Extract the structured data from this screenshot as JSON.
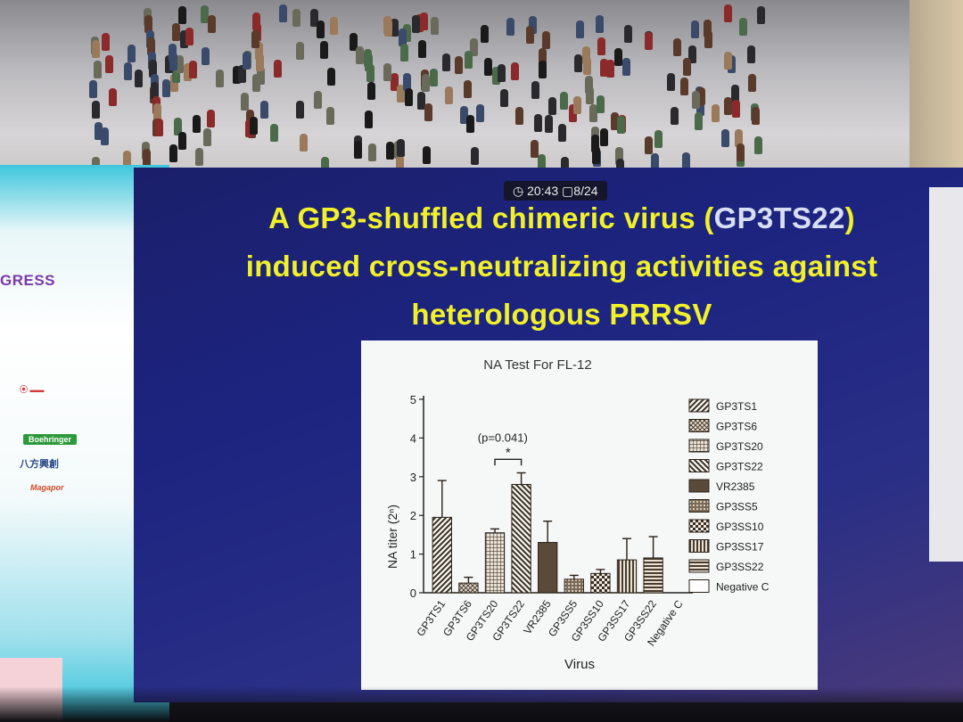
{
  "slide": {
    "title_line1_a": "A GP3-shuffled chimeric virus (",
    "title_line1_hl": "GP3TS22",
    "title_line1_b": ")",
    "title_line2": "induced cross-neutralizing activities against",
    "title_line3": "heterologous PRRSV"
  },
  "status_bar": {
    "time": "20:43",
    "page": "8/24"
  },
  "banner": {
    "congress_text": "GRESS",
    "logo_2": "Boehringer",
    "logo_3": "八方興創",
    "logo_4": "Magapor"
  },
  "colors": {
    "title": "#f1f12a",
    "title_highlight": "#d9dff2",
    "slide_bg": "#1c2480",
    "bar": "#5a4a3a"
  },
  "chart_data": {
    "type": "bar",
    "title": "NA Test For FL-12",
    "xlabel": "Virus",
    "ylabel": "NA titer (2ⁿ)",
    "ylim": [
      0,
      5
    ],
    "yticks": [
      0,
      1,
      2,
      3,
      4,
      5
    ],
    "grid": false,
    "legend_position": "right",
    "categories": [
      "GP3TS1",
      "GP3TS6",
      "GP3TS20",
      "GP3TS22",
      "VR2385",
      "GP3SS5",
      "GP3SS10",
      "GP3SS17",
      "GP3SS22",
      "Negative C"
    ],
    "values": [
      1.95,
      0.25,
      1.55,
      2.8,
      1.3,
      0.35,
      0.5,
      0.85,
      0.9,
      0
    ],
    "errors": [
      0.95,
      0.15,
      0.1,
      0.3,
      0.55,
      0.1,
      0.1,
      0.55,
      0.55,
      0
    ],
    "patterns": [
      "diag-right",
      "cross-hatch",
      "grid",
      "diag-left",
      "solid",
      "fine-check",
      "checker",
      "vertical",
      "horizontal",
      "none"
    ],
    "legend": [
      "GP3TS1",
      "GP3TS6",
      "GP3TS20",
      "GP3TS22",
      "VR2385",
      "GP3SS5",
      "GP3SS10",
      "GP3SS17",
      "GP3SS22",
      "Negative C"
    ],
    "annotation": {
      "text": "(p=0.041)",
      "star": "*",
      "between": [
        2,
        3
      ]
    }
  }
}
